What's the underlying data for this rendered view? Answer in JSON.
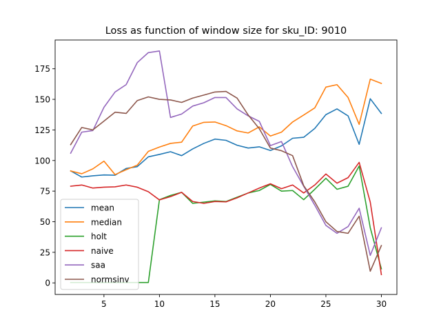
{
  "chart_data": {
    "type": "line",
    "title": "Loss as function of window size for sku_ID: 9010",
    "xlabel": "",
    "ylabel": "",
    "xlim": [
      0.6,
      31.4
    ],
    "ylim": [
      -9.45,
      198.5
    ],
    "xticks": [
      5,
      10,
      15,
      20,
      25,
      30
    ],
    "yticks": [
      0,
      25,
      50,
      75,
      100,
      125,
      150,
      175
    ],
    "grid": false,
    "legend_position": "lower-left",
    "x": [
      2,
      3,
      4,
      5,
      6,
      7,
      8,
      9,
      10,
      11,
      12,
      13,
      14,
      15,
      16,
      17,
      18,
      19,
      20,
      21,
      22,
      23,
      24,
      25,
      26,
      27,
      28,
      29,
      30
    ],
    "series": [
      {
        "name": "mean",
        "color": "#1f77b4",
        "values": [
          91.5,
          86.5,
          87.5,
          88.2,
          88.0,
          93.5,
          95.0,
          103.0,
          105.0,
          107.2,
          104.0,
          109.5,
          114.0,
          117.5,
          116.5,
          112.5,
          110.2,
          111.2,
          108.2,
          112.0,
          118.2,
          119.0,
          126.2,
          137.5,
          142.2,
          136.5,
          113.2,
          150.5,
          138.5
        ]
      },
      {
        "name": "median",
        "color": "#ff7f0e",
        "values": [
          91.5,
          89.2,
          93.2,
          99.5,
          88.5,
          92.5,
          96.2,
          107.5,
          111.0,
          114.0,
          115.0,
          128.2,
          131.2,
          131.5,
          128.5,
          124.2,
          122.5,
          127.5,
          120.0,
          123.2,
          131.5,
          137.2,
          143.0,
          160.0,
          162.0,
          151.5,
          129.5,
          166.5,
          163.0
        ]
      },
      {
        "name": "holt",
        "color": "#2ca02c",
        "values": [
          0.3,
          0.3,
          0.3,
          0.3,
          0.3,
          0.3,
          0.3,
          0.3,
          68.0,
          71.5,
          74.0,
          65.0,
          66.0,
          67.0,
          66.5,
          70.0,
          73.5,
          75.5,
          80.5,
          75.0,
          75.5,
          68.0,
          76.5,
          85.5,
          76.5,
          79.0,
          95.5,
          45.0,
          11.5
        ]
      },
      {
        "name": "naive",
        "color": "#d62728",
        "values": [
          79.0,
          80.0,
          77.5,
          78.2,
          78.5,
          80.0,
          78.2,
          74.5,
          67.8,
          70.5,
          74.0,
          66.5,
          65.0,
          66.5,
          66.2,
          69.5,
          73.5,
          77.5,
          81.0,
          77.0,
          80.0,
          73.5,
          80.0,
          89.0,
          81.5,
          86.0,
          98.5,
          66.0,
          6.8
        ]
      },
      {
        "name": "saa",
        "color": "#9467bd",
        "values": [
          106.0,
          123.2,
          124.5,
          143.5,
          156.0,
          162.0,
          180.0,
          188.2,
          189.5,
          135.2,
          138.0,
          144.5,
          147.2,
          151.5,
          151.5,
          142.2,
          136.5,
          132.0,
          112.2,
          115.5,
          95.0,
          79.0,
          63.5,
          47.0,
          40.5,
          46.0,
          61.0,
          22.5,
          45.0
        ]
      },
      {
        "name": "normsinv",
        "color": "#8c564b",
        "values": [
          113.0,
          127.0,
          125.0,
          132.2,
          139.5,
          138.5,
          149.0,
          152.0,
          150.0,
          149.5,
          147.5,
          151.0,
          153.5,
          156.0,
          156.5,
          151.0,
          137.2,
          126.0,
          110.2,
          108.0,
          104.0,
          79.5,
          66.2,
          50.0,
          42.0,
          40.5,
          54.5,
          9.5,
          30.5
        ]
      }
    ]
  }
}
